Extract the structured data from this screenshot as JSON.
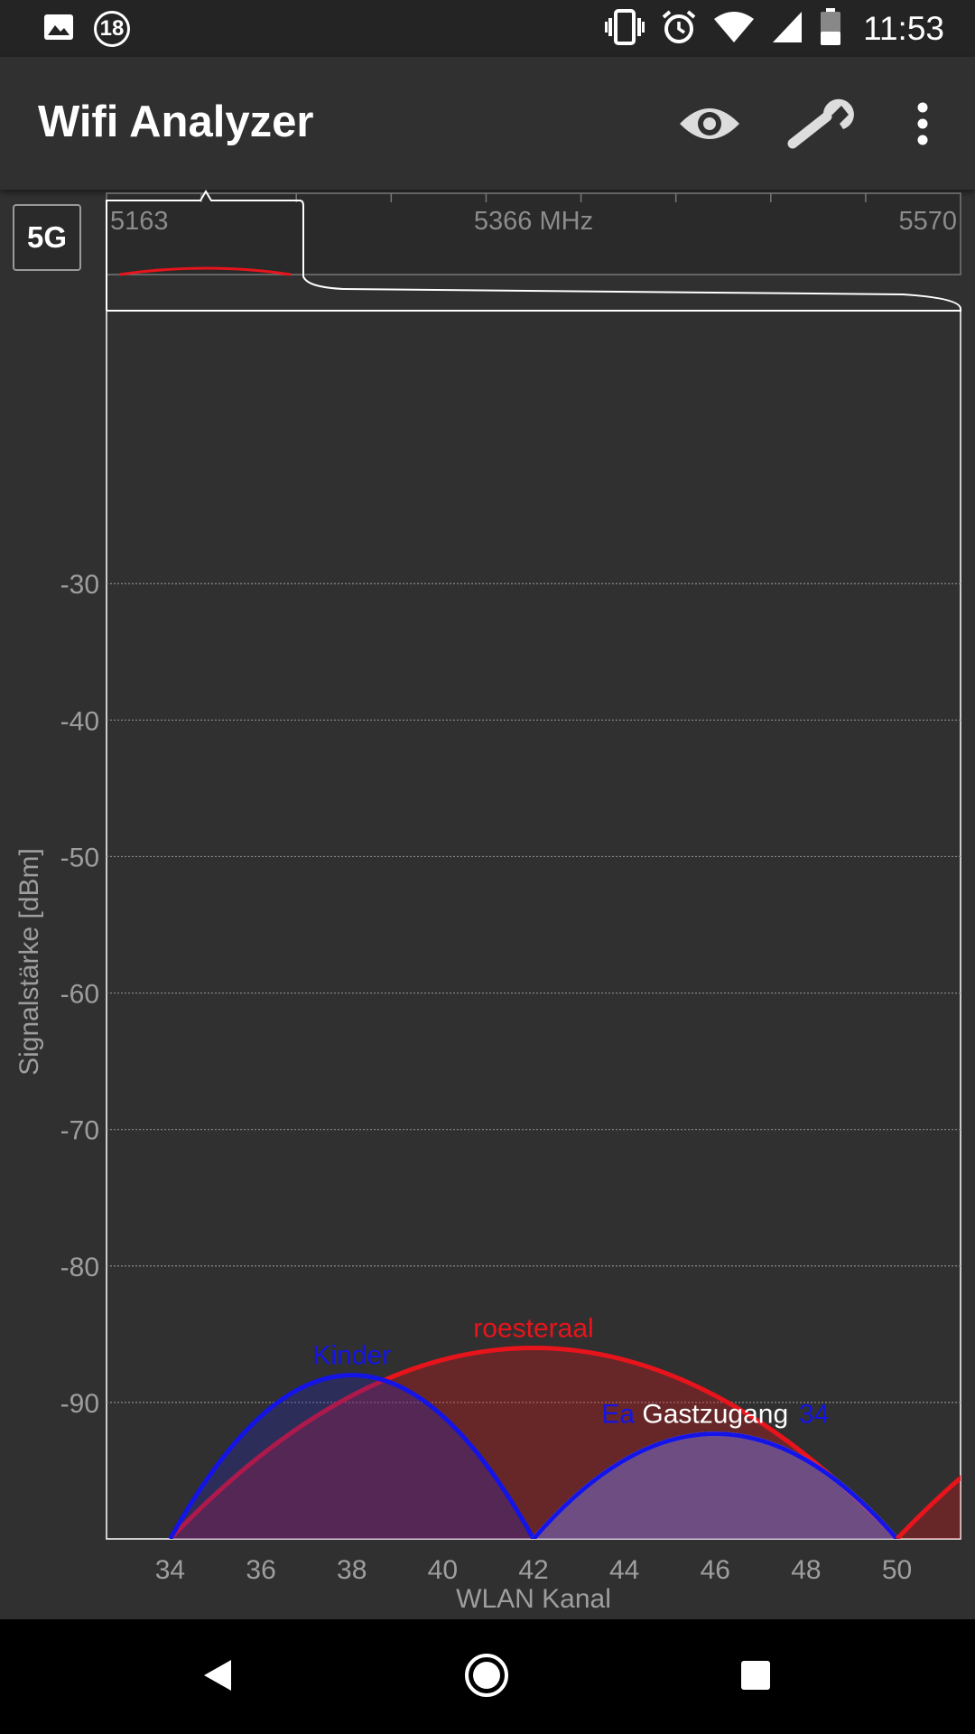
{
  "status_bar": {
    "notification_count": "18",
    "time": "11:53",
    "icons": [
      "image-icon",
      "notification-count-icon",
      "vibrate-icon",
      "alarm-icon",
      "wifi-icon",
      "cell-signal-icon",
      "battery-icon"
    ]
  },
  "toolbar": {
    "title": "Wifi Analyzer",
    "icons": [
      "eye-icon",
      "wrench-icon",
      "more-vert-icon"
    ]
  },
  "band_button": {
    "label": "5G"
  },
  "navigation": {
    "icons": [
      "back-icon",
      "home-icon",
      "recents-icon"
    ]
  },
  "colors": {
    "background": "#303030",
    "toolbar": "#303030",
    "status_bar": "#242424",
    "red": "#e8141c",
    "blue": "#1414e6",
    "white": "#ffffff",
    "axis_text": "#9e9e9e"
  },
  "chart_data": {
    "type": "area",
    "xlabel": "WLAN Kanal",
    "ylabel": "Signalstärke [dBm]",
    "xlim": [
      32.6,
      51.4
    ],
    "ylim": [
      -100,
      -10
    ],
    "x_ticks": [
      34,
      36,
      38,
      40,
      42,
      44,
      46,
      48,
      50
    ],
    "y_ticks": [
      -30,
      -40,
      -50,
      -60,
      -70,
      -80,
      -90
    ],
    "grid": "horizontal dotted",
    "series": [
      {
        "name": "roesteraal",
        "color": "#e8141c",
        "channel_start": 34,
        "channel_end": 50,
        "peak_channel": 42,
        "peak_dbm": -86
      },
      {
        "name": "Kinder",
        "color": "#1414e6",
        "channel_start": 34,
        "channel_end": 42,
        "peak_channel": 38,
        "peak_dbm": -88
      },
      {
        "name": "Gastzugang",
        "color": "#ffffff",
        "channel_start": 42,
        "channel_end": 50,
        "peak_channel": 46,
        "peak_dbm": -92.3
      },
      {
        "name": "Ea",
        "color": "#1414e6",
        "label_fragment_right": "34",
        "channel_start": 42,
        "channel_end": 50,
        "peak_channel": 46,
        "peak_dbm": -92.3
      },
      {
        "color": "#e8141c",
        "channel_start": 50,
        "channel_end": 66,
        "peak_channel": 58,
        "peak_dbm": -86
      }
    ],
    "overview": {
      "labels": [
        "5163",
        "5366 MHz",
        "5570"
      ],
      "tick_count": 8
    }
  }
}
